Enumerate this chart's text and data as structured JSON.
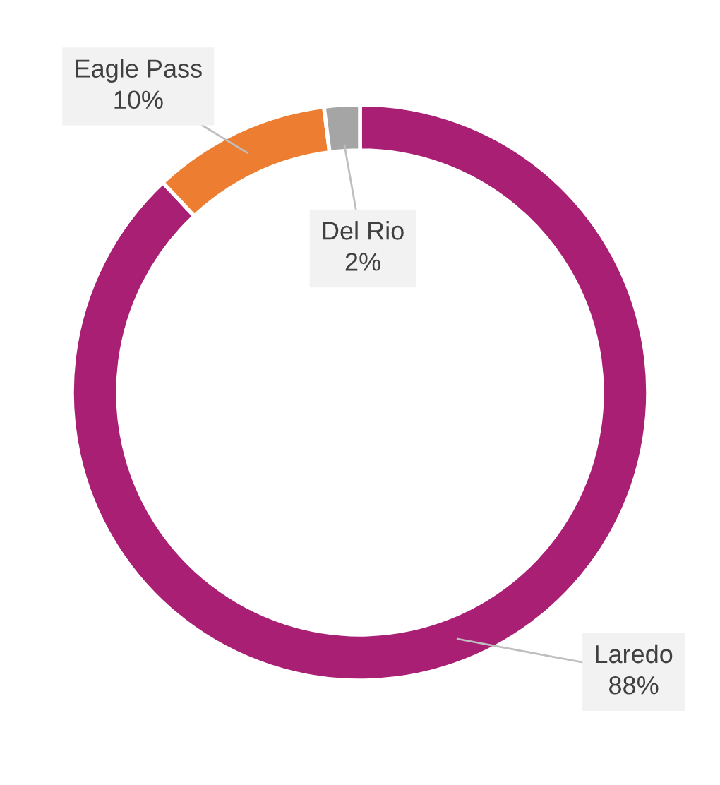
{
  "chart_data": {
    "type": "donut",
    "categories": [
      "Laredo",
      "Eagle Pass",
      "Del Rio"
    ],
    "values": [
      88,
      10,
      2
    ],
    "colors": [
      "#a91f74",
      "#ed7d31",
      "#a5a5a5"
    ],
    "value_labels": [
      "88%",
      "10%",
      "2%"
    ]
  }
}
